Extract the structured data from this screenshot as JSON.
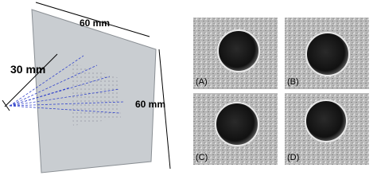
{
  "labels": {
    "plate_width": "60 mm",
    "distance": "30 mm",
    "plate_height": "60 mm"
  },
  "panels": [
    "(A)",
    "(B)",
    "(C)",
    "(D)"
  ]
}
